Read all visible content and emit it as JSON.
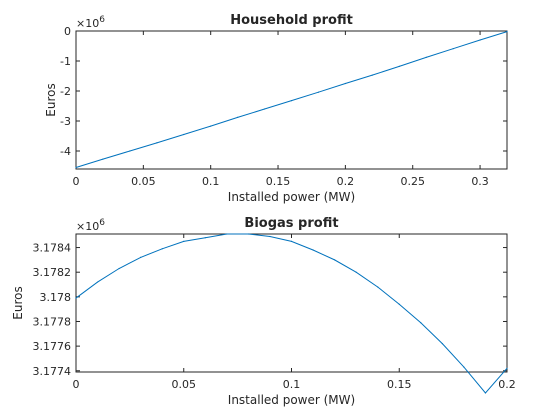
{
  "chart_data": [
    {
      "type": "line",
      "title": "Household profit",
      "xlabel": "Installed power (MW)",
      "ylabel": "Euros",
      "exponent_label": "×10",
      "exponent_power": "6",
      "xlim": [
        0,
        0.32
      ],
      "ylim": [
        -4.6,
        0
      ],
      "xticks": [
        0,
        0.05,
        0.1,
        0.15,
        0.2,
        0.25,
        0.3
      ],
      "xtick_labels": [
        "0",
        "0.05",
        "0.1",
        "0.15",
        "0.2",
        "0.25",
        "0.3"
      ],
      "yticks": [
        -4,
        -3,
        -2,
        -1,
        0
      ],
      "ytick_labels": [
        "-4",
        "-3",
        "-2",
        "-1",
        "0"
      ],
      "grid": false,
      "series": [
        {
          "color": "#0072BD",
          "x": [
            0,
            0.02,
            0.04,
            0.06,
            0.08,
            0.1,
            0.12,
            0.14,
            0.16,
            0.18,
            0.2,
            0.22,
            0.24,
            0.26,
            0.28,
            0.3,
            0.32
          ],
          "y": [
            -4.55,
            -4.27,
            -4.0,
            -3.73,
            -3.45,
            -3.17,
            -2.88,
            -2.6,
            -2.32,
            -2.04,
            -1.75,
            -1.47,
            -1.18,
            -0.88,
            -0.59,
            -0.3,
            -0.02
          ]
        }
      ]
    },
    {
      "type": "line",
      "title": "Biogas profit",
      "xlabel": "Installed power (MW)",
      "ylabel": "Euros",
      "exponent_label": "×10",
      "exponent_power": "6",
      "xlim": [
        0,
        0.2
      ],
      "ylim": [
        3.17739,
        3.17851
      ],
      "xticks": [
        0,
        0.05,
        0.1,
        0.15,
        0.2
      ],
      "xtick_labels": [
        "0",
        "0.05",
        "0.1",
        "0.15",
        "0.2"
      ],
      "yticks": [
        3.1774,
        3.1776,
        3.1778,
        3.178,
        3.1782,
        3.1784
      ],
      "ytick_labels": [
        "3.1774",
        "3.1776",
        "3.1778",
        "3.178",
        "3.1782",
        "3.1784"
      ],
      "grid": false,
      "series": [
        {
          "color": "#0072BD",
          "x": [
            0,
            0.01,
            0.02,
            0.03,
            0.04,
            0.05,
            0.06,
            0.07,
            0.08,
            0.09,
            0.1,
            0.11,
            0.12,
            0.13,
            0.14,
            0.15,
            0.16,
            0.17,
            0.18,
            0.19,
            0.2
          ],
          "y": [
            3.17799,
            3.17812,
            3.17823,
            3.17832,
            3.17839,
            3.17845,
            3.17848,
            3.17851,
            3.17851,
            3.17849,
            3.17845,
            3.17838,
            3.1783,
            3.1782,
            3.17808,
            3.17794,
            3.17779,
            3.17762,
            3.17743,
            3.17722,
            3.17742
          ]
        }
      ]
    }
  ]
}
